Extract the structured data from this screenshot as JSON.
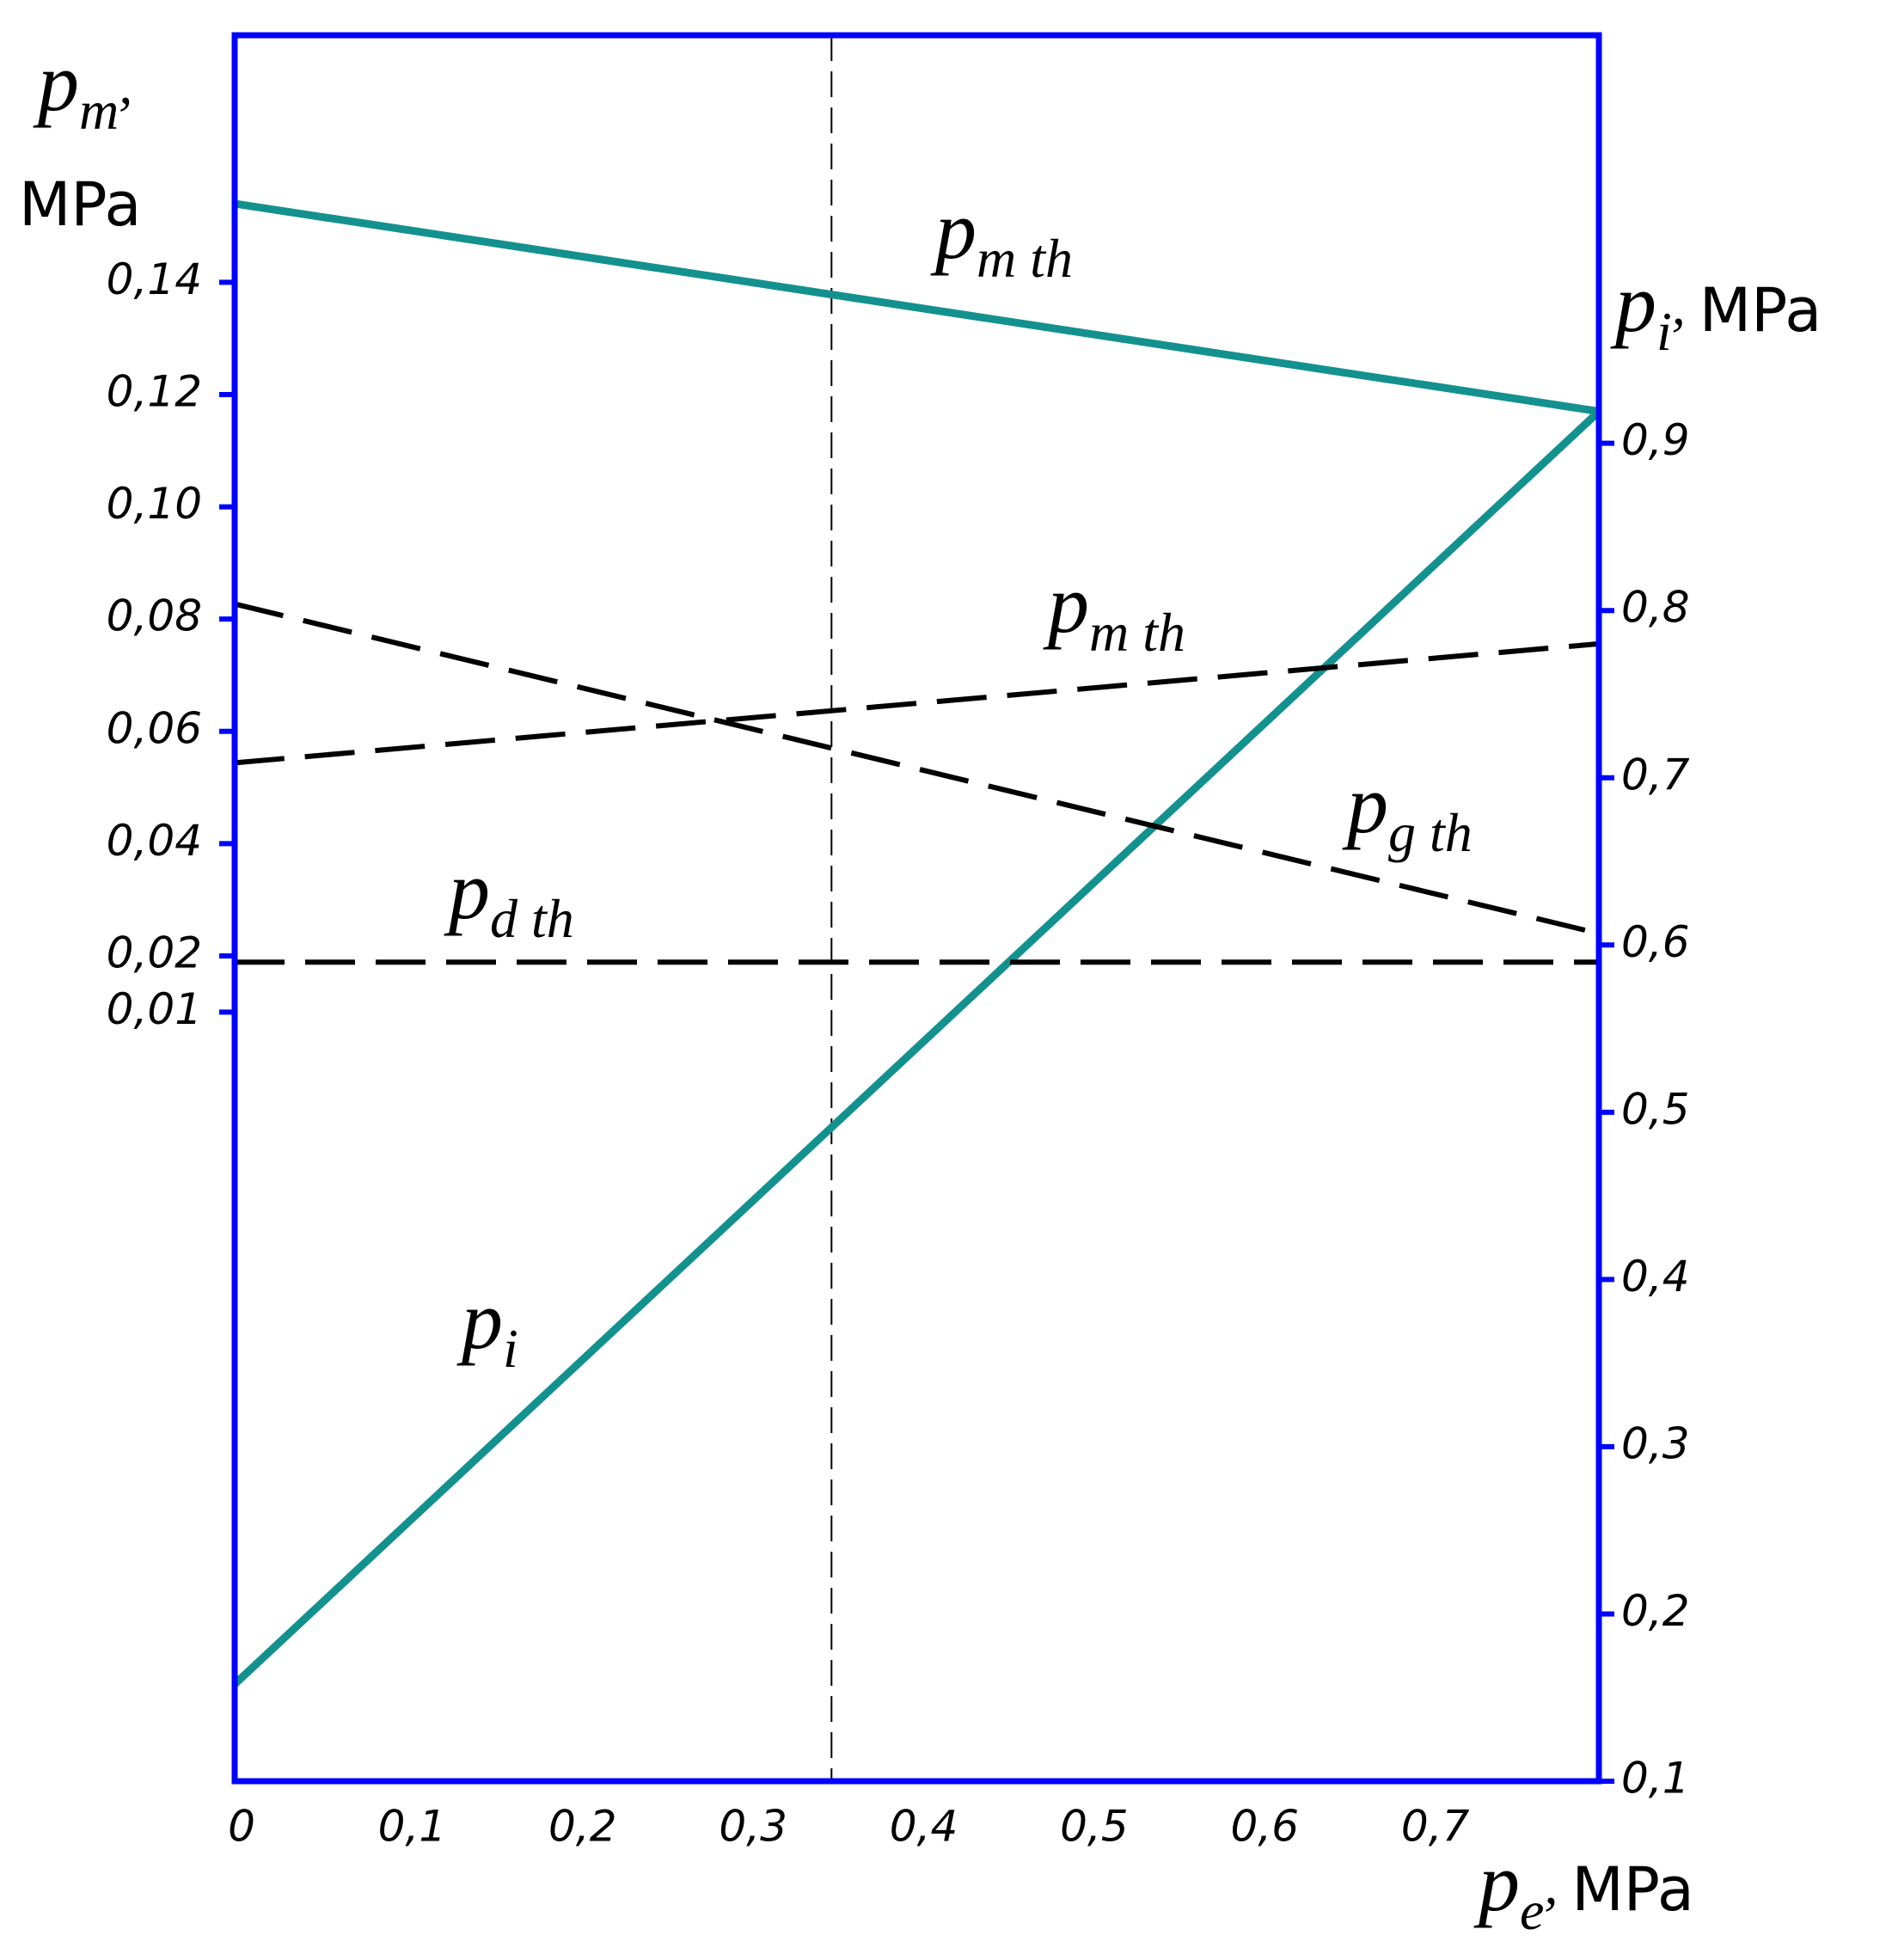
{
  "chart_data": {
    "type": "line",
    "x": [
      0,
      0.8
    ],
    "xlim": [
      0,
      0.8
    ],
    "xticks": [
      0,
      {
        "value": 0.1,
        "label": "0,1"
      },
      {
        "value": 0.2,
        "label": "0,2"
      },
      {
        "value": 0.3,
        "label": "0,3"
      },
      {
        "value": 0.4,
        "label": "0,4"
      },
      {
        "value": 0.5,
        "label": "0,5"
      },
      {
        "value": 0.6,
        "label": "0,6"
      },
      {
        "value": 0.7,
        "label": "0,7"
      }
    ],
    "ylim": [
      -0.127,
      0.184
    ],
    "yticks": [
      {
        "value": 0.01,
        "label": "0,01"
      },
      {
        "value": 0.02,
        "label": "0,02"
      },
      {
        "value": 0.04,
        "label": "0,04"
      },
      {
        "value": 0.06,
        "label": "0,06"
      },
      {
        "value": 0.08,
        "label": "0,08"
      },
      {
        "value": 0.1,
        "label": "0,10"
      },
      {
        "value": 0.12,
        "label": "0,12"
      },
      {
        "value": 0.14,
        "label": "0,14"
      }
    ],
    "y2lim": [
      0.1,
      1.144
    ],
    "y2ticks": [
      {
        "value": 0.1,
        "label": "0,1"
      },
      {
        "value": 0.2,
        "label": "0,2"
      },
      {
        "value": 0.3,
        "label": "0,3"
      },
      {
        "value": 0.4,
        "label": "0,4"
      },
      {
        "value": 0.5,
        "label": "0,5"
      },
      {
        "value": 0.6,
        "label": "0,6"
      },
      {
        "value": 0.7,
        "label": "0,7"
      },
      {
        "value": 0.8,
        "label": "0,8"
      },
      {
        "value": 0.9,
        "label": "0,9"
      }
    ],
    "vlines": [
      0.35
    ],
    "x_label": {
      "symbol": "p",
      "subscript": "e",
      "separator": ",",
      "unit": "MPa"
    },
    "y_label": {
      "symbol": "p",
      "subscript": "m",
      "separator": ",",
      "unit": "MPa"
    },
    "y2_label": {
      "symbol": "p",
      "subscript": "i",
      "separator": ",",
      "unit": "MPa"
    },
    "axis_color": "#0000ff",
    "series": [
      {
        "symbol": "p",
        "subscript": "m th",
        "color": "#13918f",
        "style": "solid",
        "values": [
          0.154,
          0.117
        ]
      },
      {
        "symbol": "p",
        "subscript": "i",
        "color": "#13918f",
        "style": "solid",
        "axis": "y2",
        "values": [
          0.158,
          0.919
        ]
      },
      {
        "symbol": "p",
        "subscript": "m th",
        "color": "#000000",
        "style": "dashed",
        "values": [
          0.0544,
          0.0756
        ]
      },
      {
        "symbol": "p",
        "subscript": "g th",
        "color": "#000000",
        "style": "dashed",
        "values": [
          0.0827,
          0.024
        ]
      },
      {
        "symbol": "p",
        "subscript": "d th",
        "color": "#000000",
        "style": "dashed",
        "values": [
          0.0189,
          0.0189
        ]
      }
    ]
  }
}
